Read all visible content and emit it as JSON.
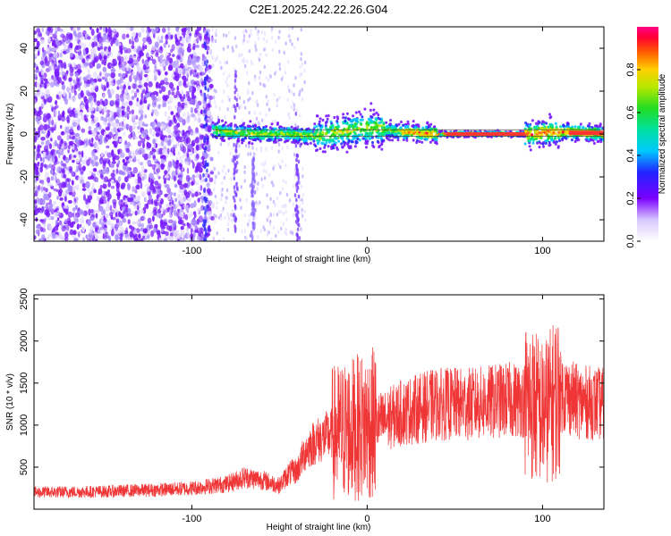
{
  "title": "C2E1.2025.242.22.26.G04",
  "colors": {
    "snr_line": "#ef3535",
    "frame": "#000000",
    "center_band": "#ffb347"
  },
  "chart_data": [
    {
      "type": "heatmap",
      "xlabel": "Height of straight line (km)",
      "ylabel": "Frequency (Hz)",
      "xlim": [
        -190,
        135
      ],
      "ylim": [
        -50,
        50
      ],
      "x_ticks": [
        -100,
        0,
        100
      ],
      "y_ticks": [
        -40,
        -20,
        0,
        20,
        40
      ],
      "colorbar": {
        "label": "Normalized spectral amplitude",
        "range": [
          0,
          1
        ],
        "ticks": [
          "0.0",
          "0.2",
          "0.4",
          "0.6",
          "0.8"
        ],
        "tick_values": [
          0,
          0.2,
          0.4,
          0.6,
          0.8
        ]
      },
      "series": [
        {
          "x": [
            -90,
            -80,
            -60,
            -45,
            -30,
            -15,
            0,
            10,
            20,
            40,
            60,
            80,
            95,
            105,
            115,
            135
          ],
          "y": [
            2,
            1,
            0,
            0,
            -1,
            1,
            3,
            2,
            1,
            0,
            0,
            0,
            0,
            1,
            1,
            0
          ]
        }
      ]
    },
    {
      "type": "line",
      "xlabel": "Height of straight line (km)",
      "ylabel": "SNR (10 * v/v)",
      "xlim": [
        -190,
        135
      ],
      "ylim": [
        0,
        2550
      ],
      "x_ticks": [
        -100,
        0,
        100
      ],
      "y_ticks": [
        500,
        1000,
        1500,
        2000,
        2500
      ],
      "series": [
        {
          "x": [
            -190,
            -150,
            -120,
            -100,
            -80,
            -70,
            -60,
            -50,
            -45,
            -40,
            -35,
            -30,
            -20,
            -10,
            0,
            10,
            20,
            30,
            40,
            60,
            80,
            90,
            95,
            100,
            105,
            110,
            120,
            135
          ],
          "y": [
            200,
            210,
            230,
            250,
            300,
            380,
            350,
            280,
            420,
            460,
            700,
            800,
            900,
            950,
            1000,
            1050,
            1150,
            1200,
            1250,
            1250,
            1300,
            1300,
            1250,
            1150,
            1250,
            1400,
            1280,
            1250
          ]
        }
      ]
    }
  ]
}
